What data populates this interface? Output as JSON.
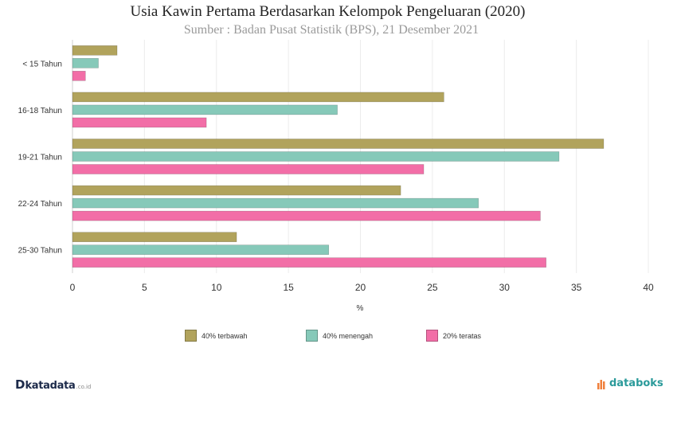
{
  "chart_data": {
    "type": "bar",
    "orientation": "horizontal",
    "title": "Usia Kawin Pertama Berdasarkan Kelompok Pengeluaran (2020)",
    "subtitle": "Sumber : Badan Pusat Statistik (BPS), 21 Desember 2021",
    "xlabel": "%",
    "xlim": [
      0,
      40
    ],
    "xticks": [
      0,
      5,
      10,
      15,
      20,
      25,
      30,
      35,
      40
    ],
    "categories": [
      "< 15 Tahun",
      "16-18 Tahun",
      "19-21 Tahun",
      "22-24 Tahun",
      "25-30 Tahun"
    ],
    "series": [
      {
        "name": "40% terbawah",
        "color": "#b1a35c",
        "values": [
          3.1,
          25.8,
          36.9,
          22.8,
          11.4
        ]
      },
      {
        "name": "40% menengah",
        "color": "#86c9b9",
        "values": [
          1.8,
          18.4,
          33.8,
          28.2,
          17.8
        ]
      },
      {
        "name": "20% teratas",
        "color": "#f26ea7",
        "values": [
          0.9,
          9.3,
          24.4,
          32.5,
          32.9
        ]
      }
    ],
    "grid": true,
    "legend_position": "bottom"
  },
  "logos": {
    "left_mark": "D",
    "left_word": "katadata",
    "left_sub": ".co.id",
    "right_word": "databoks"
  }
}
